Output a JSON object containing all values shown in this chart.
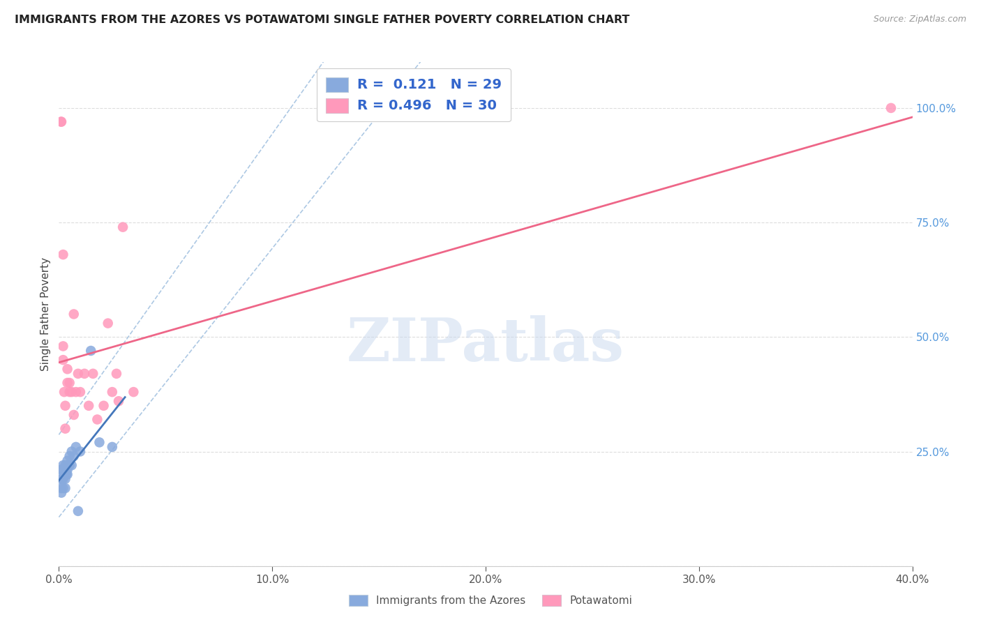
{
  "title": "IMMIGRANTS FROM THE AZORES VS POTAWATOMI SINGLE FATHER POVERTY CORRELATION CHART",
  "source": "Source: ZipAtlas.com",
  "ylabel": "Single Father Poverty",
  "legend_label1": "Immigrants from the Azores",
  "legend_label2": "Potawatomi",
  "color_blue": "#88AADD",
  "color_pink": "#FF99BB",
  "color_blue_line": "#4477BB",
  "color_pink_line": "#EE6688",
  "color_dashed": "#99BBDD",
  "watermark_text": "ZIPatlas",
  "watermark_color": "#C8D8EE",
  "azores_x": [
    0.001,
    0.001,
    0.001,
    0.0012,
    0.0015,
    0.0015,
    0.002,
    0.002,
    0.002,
    0.0025,
    0.003,
    0.003,
    0.003,
    0.0035,
    0.004,
    0.004,
    0.004,
    0.004,
    0.005,
    0.005,
    0.006,
    0.006,
    0.007,
    0.008,
    0.009,
    0.01,
    0.015,
    0.019,
    0.025
  ],
  "azores_y": [
    0.17,
    0.19,
    0.21,
    0.16,
    0.19,
    0.21,
    0.17,
    0.19,
    0.22,
    0.2,
    0.17,
    0.19,
    0.22,
    0.2,
    0.2,
    0.21,
    0.22,
    0.23,
    0.22,
    0.24,
    0.22,
    0.25,
    0.24,
    0.26,
    0.12,
    0.25,
    0.47,
    0.27,
    0.26
  ],
  "potawatomi_x": [
    0.001,
    0.0012,
    0.002,
    0.002,
    0.002,
    0.0025,
    0.003,
    0.003,
    0.004,
    0.004,
    0.005,
    0.005,
    0.006,
    0.007,
    0.007,
    0.008,
    0.009,
    0.01,
    0.012,
    0.014,
    0.016,
    0.018,
    0.021,
    0.023,
    0.025,
    0.027,
    0.028,
    0.03,
    0.035,
    0.39
  ],
  "potawatomi_y": [
    0.97,
    0.97,
    0.45,
    0.48,
    0.68,
    0.38,
    0.3,
    0.35,
    0.4,
    0.43,
    0.38,
    0.4,
    0.38,
    0.33,
    0.55,
    0.38,
    0.42,
    0.38,
    0.42,
    0.35,
    0.42,
    0.32,
    0.35,
    0.53,
    0.38,
    0.42,
    0.36,
    0.74,
    0.38,
    1.0
  ],
  "xlim": [
    0.0,
    0.4
  ],
  "ylim": [
    0.0,
    1.1
  ],
  "yticks": [
    0.0,
    0.25,
    0.5,
    0.75,
    1.0
  ],
  "xticks": [
    0.0,
    0.1,
    0.2,
    0.3,
    0.4
  ],
  "grid_color": "#DDDDDD",
  "bg_color": "#FFFFFF"
}
